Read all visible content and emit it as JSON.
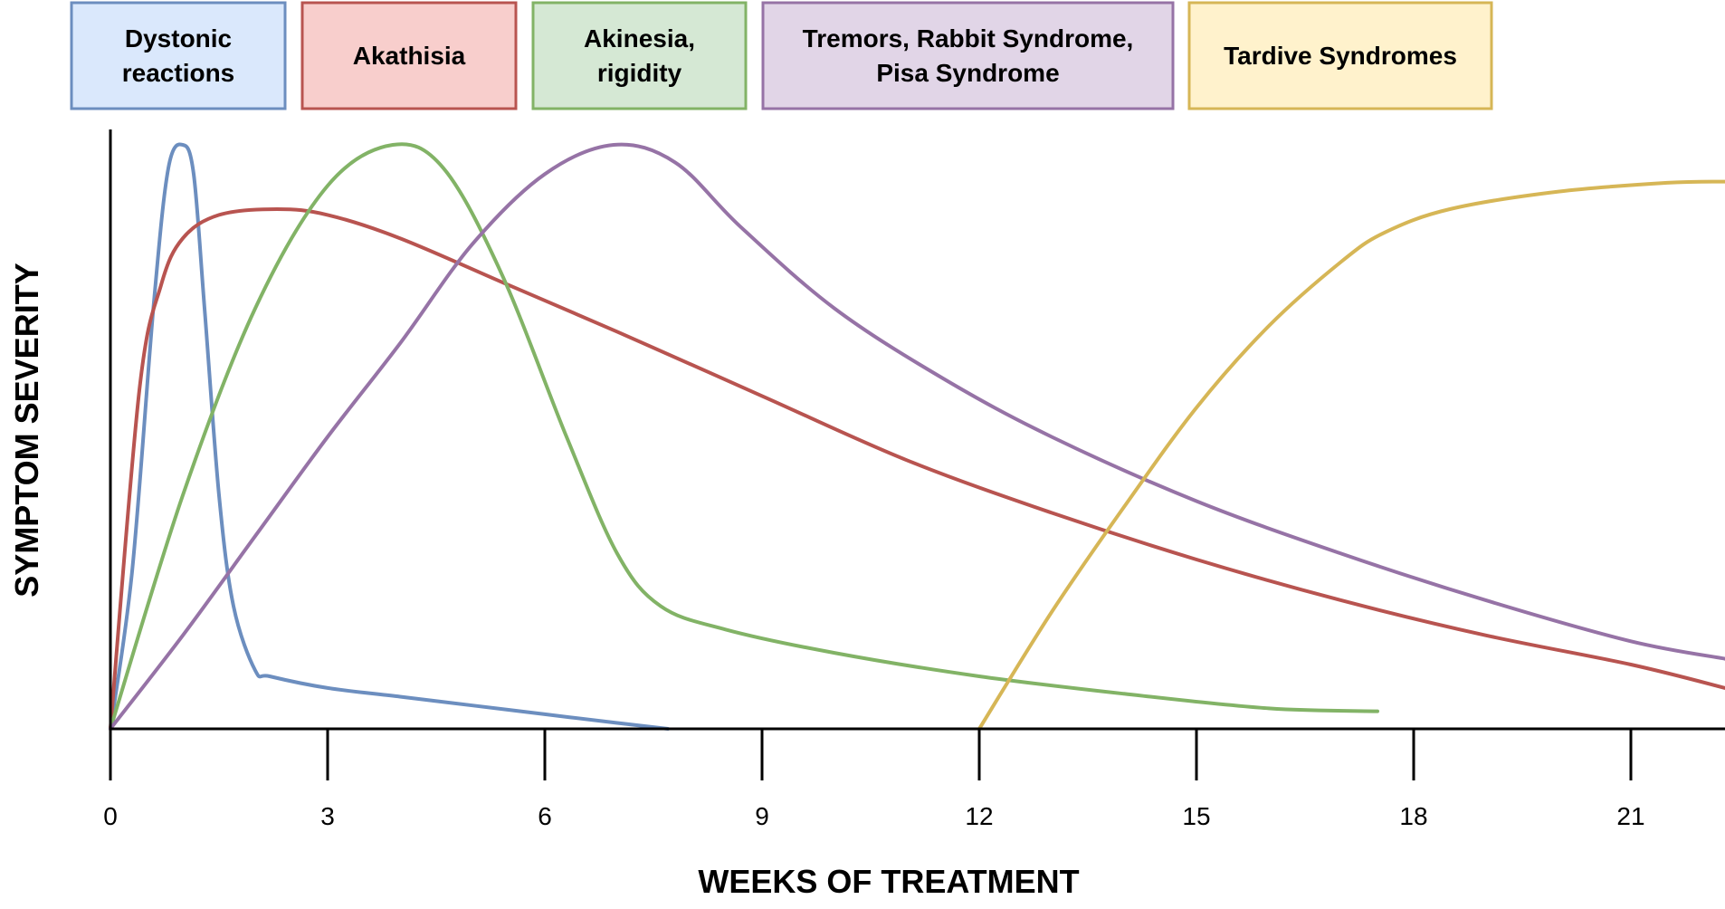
{
  "chart_data": {
    "type": "line",
    "xlabel": "WEEKS OF TREATMENT",
    "ylabel": "SYMPTOM SEVERITY",
    "xlim": [
      0,
      22.3
    ],
    "ylim": [
      0,
      1
    ],
    "x_ticks": [
      0,
      3,
      6,
      9,
      12,
      15,
      18,
      21
    ],
    "x_tick_labels": [
      "0",
      "3",
      "6",
      "9",
      "12",
      "15",
      "18",
      "21"
    ],
    "y_ticks": [],
    "grid": false,
    "legend_position": "top",
    "series": [
      {
        "name": "Dystonic reactions",
        "legend_lines": [
          "Dystonic",
          "reactions"
        ],
        "color": "#6c8ebf",
        "fill": "#dae8fc",
        "x": [
          0,
          0.3,
          0.6,
          0.8,
          1.0,
          1.15,
          1.3,
          1.5,
          1.7,
          2.0,
          2.2,
          3,
          4,
          5,
          6,
          7,
          7.7
        ],
        "y": [
          0,
          0.27,
          0.73,
          0.96,
          1.0,
          0.95,
          0.72,
          0.4,
          0.21,
          0.1,
          0.09,
          0.07,
          0.055,
          0.04,
          0.025,
          0.01,
          0
        ]
      },
      {
        "name": "Akathisia",
        "legend_lines": [
          "Akathisia"
        ],
        "color": "#b85450",
        "fill": "#f8cecc",
        "x": [
          0,
          0.4,
          0.7,
          1.0,
          1.5,
          2.3,
          3.0,
          4.0,
          5.5,
          7,
          9,
          11,
          13,
          15,
          17,
          19,
          21,
          22.3
        ],
        "y": [
          0,
          0.58,
          0.76,
          0.84,
          0.88,
          0.89,
          0.88,
          0.84,
          0.76,
          0.68,
          0.57,
          0.46,
          0.37,
          0.29,
          0.22,
          0.16,
          0.11,
          0.07
        ]
      },
      {
        "name": "Akinesia, rigidity",
        "legend_lines": [
          "Akinesia,",
          "rigidity"
        ],
        "color": "#82b366",
        "fill": "#d5e8d4",
        "x": [
          0,
          1,
          2,
          3,
          3.9,
          4.6,
          5.4,
          6.3,
          7.0,
          7.6,
          8.5,
          10,
          12,
          14,
          16,
          17.5
        ],
        "y": [
          0,
          0.4,
          0.72,
          0.93,
          1.0,
          0.96,
          0.78,
          0.5,
          0.3,
          0.21,
          0.17,
          0.13,
          0.09,
          0.06,
          0.035,
          0.03
        ]
      },
      {
        "name": "Tremors, Rabbit Syndrome, Pisa Syndrome",
        "legend_lines": [
          "Tremors, Rabbit Syndrome,",
          "Pisa Syndrome"
        ],
        "color": "#9673a6",
        "fill": "#e1d5e7",
        "x": [
          0,
          1,
          2,
          3,
          4,
          5,
          6,
          6.95,
          7.8,
          8.7,
          10,
          11.5,
          13,
          15,
          17,
          19,
          21,
          22.3
        ],
        "y": [
          0,
          0.16,
          0.33,
          0.5,
          0.66,
          0.83,
          0.95,
          1.0,
          0.97,
          0.86,
          0.72,
          0.6,
          0.5,
          0.39,
          0.3,
          0.22,
          0.15,
          0.12
        ]
      },
      {
        "name": "Tardive Syndromes",
        "legend_lines": [
          "Tardive Syndromes"
        ],
        "color": "#d6b656",
        "fill": "#fff2cc",
        "x": [
          12,
          13,
          14,
          15,
          16,
          17,
          17.6,
          18.5,
          20,
          21.5,
          22.3
        ],
        "y": [
          0,
          0.2,
          0.38,
          0.55,
          0.69,
          0.8,
          0.85,
          0.89,
          0.92,
          0.935,
          0.937
        ]
      }
    ]
  }
}
